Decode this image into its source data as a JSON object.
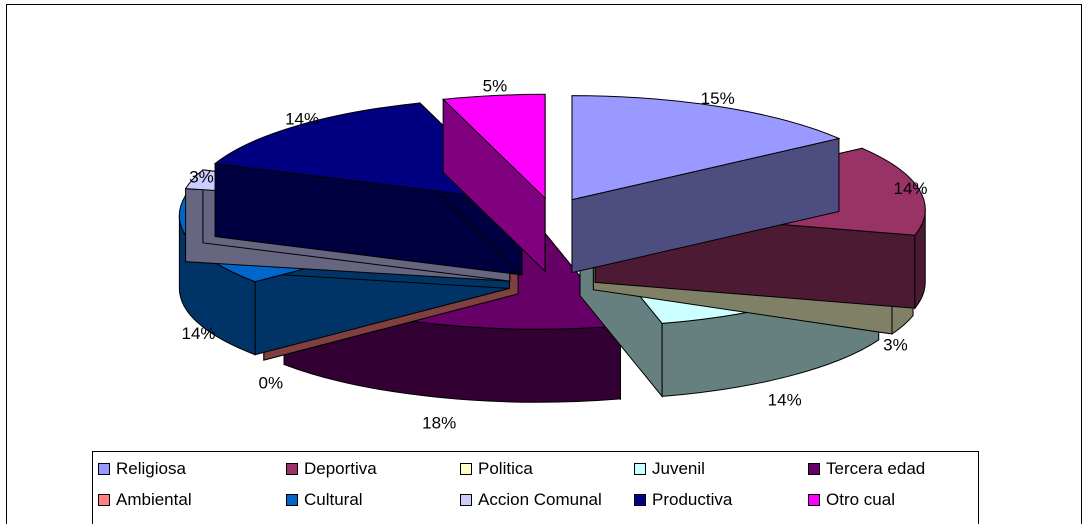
{
  "chart_data": {
    "type": "pie",
    "style": "3d-exploded",
    "title": "",
    "legend_position": "bottom",
    "series": [
      {
        "name": "Religiosa",
        "value": 15,
        "label": "15%",
        "color": "#9999FF"
      },
      {
        "name": "Deportiva",
        "value": 14,
        "label": "14%",
        "color": "#993366"
      },
      {
        "name": "Politica",
        "value": 3,
        "label": "3%",
        "color": "#FFFFCC"
      },
      {
        "name": "Juvenil",
        "value": 14,
        "label": "14%",
        "color": "#CCFFFF"
      },
      {
        "name": "Tercera edad",
        "value": 18,
        "label": "18%",
        "color": "#660066"
      },
      {
        "name": "Ambiental",
        "value": 0,
        "label": "0%",
        "color": "#FF8080"
      },
      {
        "name": "Cultural",
        "value": 14,
        "label": "14%",
        "color": "#0066CC"
      },
      {
        "name": "Accion Comunal",
        "value": 3,
        "label": "3%",
        "color": "#CCCCFF"
      },
      {
        "name": "Productiva",
        "value": 14,
        "label": "14%",
        "color": "#000080"
      },
      {
        "name": "Otro cual",
        "value": 5,
        "label": "5%",
        "color": "#FF00FF"
      }
    ]
  }
}
